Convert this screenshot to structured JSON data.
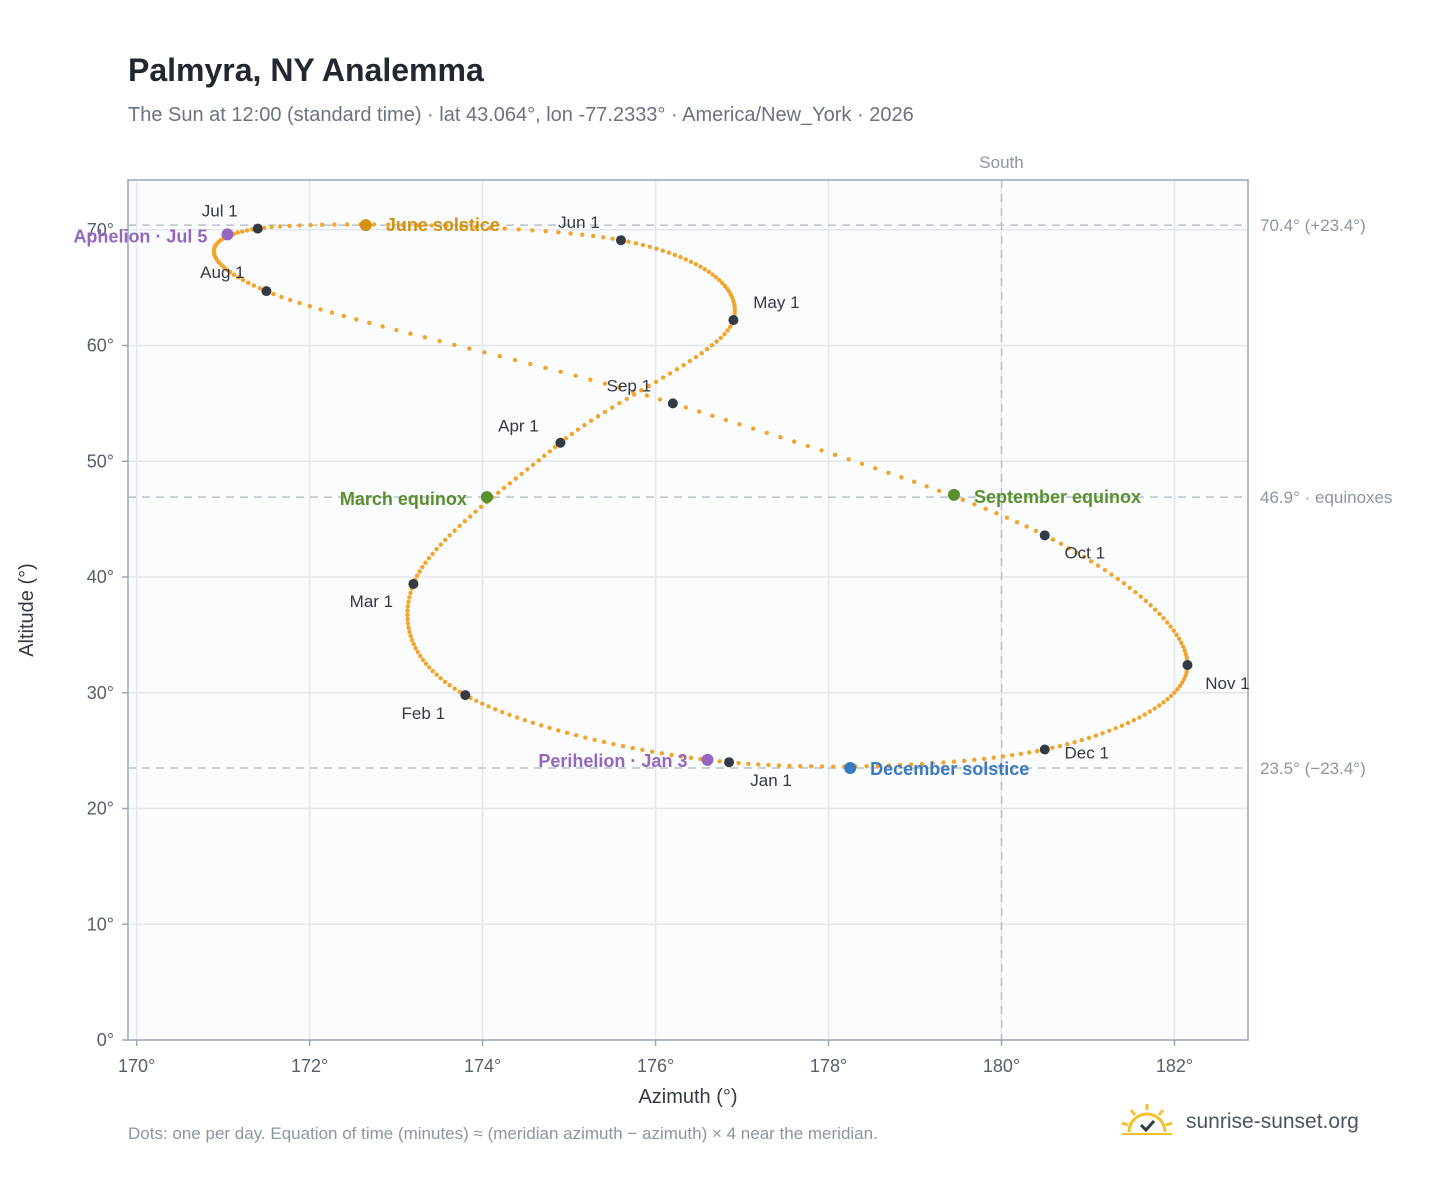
{
  "header": {
    "title": "Palmyra, NY Analemma",
    "subtitle": "The Sun at 12:00 (standard time) · lat 43.064°, lon -77.2333° · America/New_York · 2026"
  },
  "footer": {
    "note": "Dots: one per day. Equation of time (minutes) ≈ (meridian azimuth − azimuth) × 4 near the meridian.",
    "brand": "sunrise-sunset.org"
  },
  "colors": {
    "curve": "#f2a52a",
    "month_marker": "#333a44",
    "solstice_june": "#d4900f",
    "solstice_december": "#3a78c2",
    "equinox": "#5a8f2e",
    "apsis": "#9467bd",
    "grid": "#e3e8ee",
    "plot_bg": "#fafcfe",
    "reference_line": "#b8c2cc",
    "brand_icon": "#f2c12e"
  },
  "chart_data": {
    "type": "scatter",
    "xlabel": "Azimuth (°)",
    "ylabel": "Altitude (°)",
    "xlim": [
      169.9,
      182.85
    ],
    "ylim": [
      0,
      74.3
    ],
    "x_ticks": [
      170,
      172,
      174,
      176,
      178,
      180,
      182
    ],
    "y_ticks": [
      0,
      10,
      20,
      30,
      40,
      50,
      60,
      70
    ],
    "tick_suffix": "°",
    "grid": true,
    "vertical_reference": {
      "x": 180,
      "label": "South"
    },
    "horizontal_references": [
      {
        "y": 70.4,
        "label": "70.4° (+23.4°)"
      },
      {
        "y": 46.9,
        "label": "46.9° · equinoxes"
      },
      {
        "y": 23.5,
        "label": "23.5° (−23.4°)"
      }
    ],
    "month_markers": [
      {
        "label": "Jan 1",
        "azimuth": 176.85,
        "altitude": 24.0
      },
      {
        "label": "Feb 1",
        "azimuth": 173.8,
        "altitude": 29.8
      },
      {
        "label": "Mar 1",
        "azimuth": 173.2,
        "altitude": 39.4
      },
      {
        "label": "Apr 1",
        "azimuth": 174.9,
        "altitude": 51.6
      },
      {
        "label": "May 1",
        "azimuth": 176.9,
        "altitude": 62.2
      },
      {
        "label": "Jun 1",
        "azimuth": 175.6,
        "altitude": 69.1
      },
      {
        "label": "Jul 1",
        "azimuth": 171.4,
        "altitude": 70.1
      },
      {
        "label": "Aug 1",
        "azimuth": 171.5,
        "altitude": 64.7
      },
      {
        "label": "Sep 1",
        "azimuth": 176.2,
        "altitude": 55.0
      },
      {
        "label": "Oct 1",
        "azimuth": 180.5,
        "altitude": 43.6
      },
      {
        "label": "Nov 1",
        "azimuth": 182.15,
        "altitude": 32.4
      },
      {
        "label": "Dec 1",
        "azimuth": 180.5,
        "altitude": 25.1
      }
    ],
    "events": [
      {
        "label": "June solstice",
        "azimuth": 172.65,
        "altitude": 70.4,
        "color_key": "solstice_june"
      },
      {
        "label": "December solstice",
        "azimuth": 178.25,
        "altitude": 23.5,
        "color_key": "solstice_december"
      },
      {
        "label": "March equinox",
        "azimuth": 174.05,
        "altitude": 46.9,
        "color_key": "equinox"
      },
      {
        "label": "September equinox",
        "azimuth": 179.45,
        "altitude": 47.1,
        "color_key": "equinox"
      },
      {
        "label": "Aphelion · Jul 5",
        "azimuth": 171.05,
        "altitude": 69.6,
        "color_key": "apsis"
      },
      {
        "label": "Perihelion · Jan 3",
        "azimuth": 176.6,
        "altitude": 24.2,
        "color_key": "apsis"
      }
    ]
  }
}
